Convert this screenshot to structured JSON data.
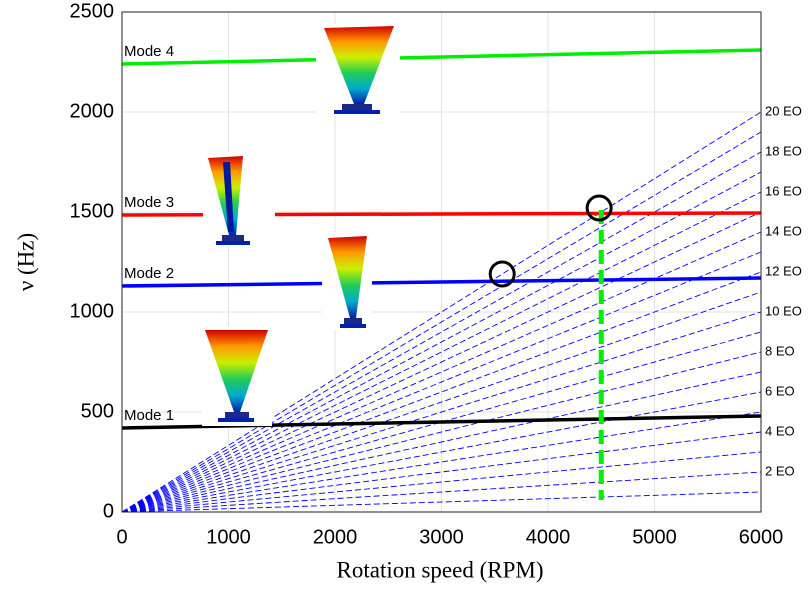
{
  "chart_data": {
    "type": "line",
    "xlabel": "Rotation speed (RPM)",
    "ylabel": "ν (Hz)",
    "x": [
      0,
      6000
    ],
    "xlim": [
      0,
      6000
    ],
    "ylim": [
      0,
      2500
    ],
    "xticks": [
      0,
      1000,
      2000,
      3000,
      4000,
      5000,
      6000
    ],
    "yticks": [
      0,
      500,
      1000,
      1500,
      2000,
      2500
    ],
    "grid": true,
    "series": [
      {
        "name": "Mode 1",
        "color": "#000000",
        "values": [
          420,
          480
        ]
      },
      {
        "name": "Mode 2",
        "color": "#0000ff",
        "values": [
          1130,
          1170
        ]
      },
      {
        "name": "Mode 3",
        "color": "#ff0000",
        "values": [
          1485,
          1495
        ]
      },
      {
        "name": "Mode 4",
        "color": "#00ee00",
        "values": [
          2240,
          2310
        ]
      }
    ],
    "eo_color": "#0000ff",
    "eo_series": [
      {
        "name": null,
        "values": [
          0,
          100
        ]
      },
      {
        "name": "2 EO",
        "values": [
          0,
          200
        ]
      },
      {
        "name": null,
        "values": [
          0,
          300
        ]
      },
      {
        "name": "4 EO",
        "values": [
          0,
          400
        ]
      },
      {
        "name": null,
        "values": [
          0,
          500
        ]
      },
      {
        "name": "6 EO",
        "values": [
          0,
          600
        ]
      },
      {
        "name": null,
        "values": [
          0,
          700
        ]
      },
      {
        "name": "8 EO",
        "values": [
          0,
          800
        ]
      },
      {
        "name": null,
        "values": [
          0,
          900
        ]
      },
      {
        "name": "10 EO",
        "values": [
          0,
          1000
        ]
      },
      {
        "name": null,
        "values": [
          0,
          1100
        ]
      },
      {
        "name": "12 EO",
        "values": [
          0,
          1200
        ]
      },
      {
        "name": null,
        "values": [
          0,
          1300
        ]
      },
      {
        "name": "14 EO",
        "values": [
          0,
          1400
        ]
      },
      {
        "name": null,
        "values": [
          0,
          1500
        ]
      },
      {
        "name": "16 EO",
        "values": [
          0,
          1600
        ]
      },
      {
        "name": null,
        "values": [
          0,
          1700
        ]
      },
      {
        "name": "18 EO",
        "values": [
          0,
          1800
        ]
      },
      {
        "name": null,
        "values": [
          0,
          1900
        ]
      },
      {
        "name": "20 EO",
        "values": [
          0,
          2000
        ]
      }
    ],
    "markers": [
      {
        "x": 3570,
        "y": 1190
      },
      {
        "x": 4480,
        "y": 1520
      }
    ],
    "marker_line": {
      "color": "#00ee00",
      "x": [
        4500,
        4500
      ],
      "values": [
        1510,
        60
      ]
    }
  }
}
